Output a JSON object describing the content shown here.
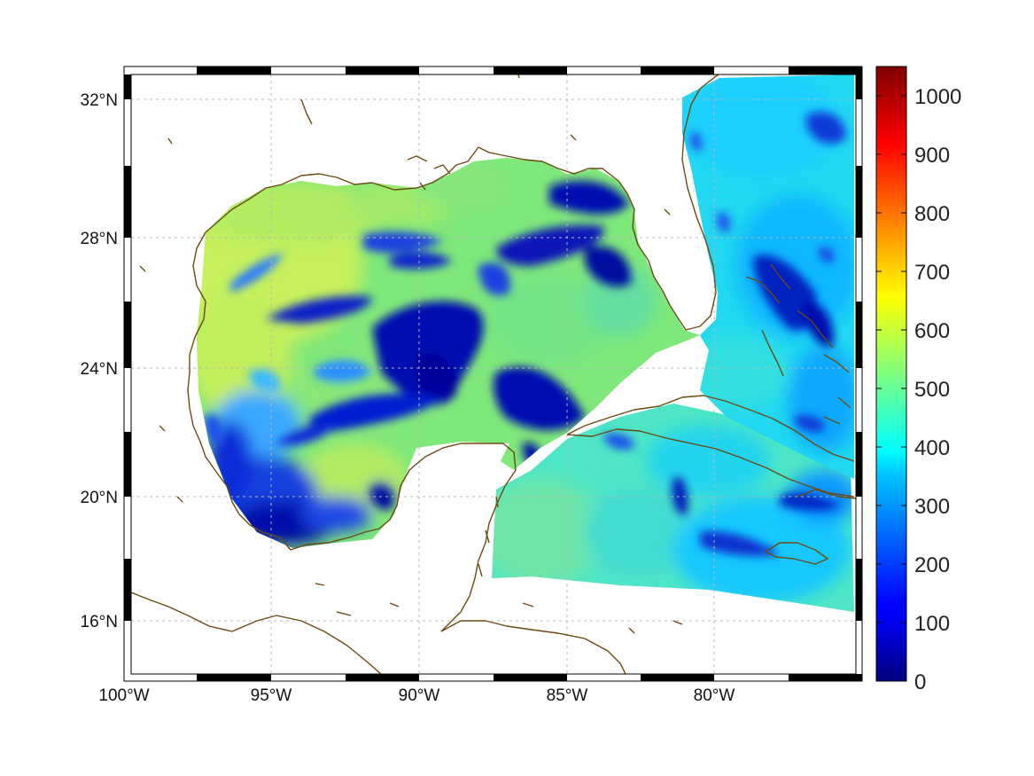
{
  "map": {
    "projection": "mercator",
    "lon_range": [
      -100,
      -75
    ],
    "lat_range": [
      14.2,
      33
    ],
    "coastline_color": "#6b4a12",
    "gridline_style": "dotted",
    "lon_ticks": [
      {
        "value": -100,
        "label": "100°W"
      },
      {
        "value": -95,
        "label": "95°W"
      },
      {
        "value": -90,
        "label": "90°W"
      },
      {
        "value": -85,
        "label": "85°W"
      },
      {
        "value": -80,
        "label": "80°W"
      }
    ],
    "lat_ticks": [
      {
        "value": 32,
        "label": "32°N"
      },
      {
        "value": 28,
        "label": "28°N"
      },
      {
        "value": 24,
        "label": "24°N"
      },
      {
        "value": 20,
        "label": "20°N"
      },
      {
        "value": 16,
        "label": "16°N"
      }
    ]
  },
  "colorbar": {
    "colormap": "jet",
    "min": 0,
    "max": 1050,
    "ticks": [
      {
        "value": 0,
        "label": "0"
      },
      {
        "value": 100,
        "label": "100"
      },
      {
        "value": 200,
        "label": "200"
      },
      {
        "value": 300,
        "label": "300"
      },
      {
        "value": 400,
        "label": "400"
      },
      {
        "value": 500,
        "label": "500"
      },
      {
        "value": 600,
        "label": "600"
      },
      {
        "value": 700,
        "label": "700"
      },
      {
        "value": 800,
        "label": "800"
      },
      {
        "value": 900,
        "label": "900"
      },
      {
        "value": 1000,
        "label": "1000"
      }
    ]
  },
  "field": {
    "description_levels": {
      "western_shelf": 590,
      "central_gulf": 500,
      "loop_current_lows": 40,
      "caribbean": 420,
      "atlantic_east_of_florida": 360,
      "bay_of_campeche": 60
    }
  }
}
